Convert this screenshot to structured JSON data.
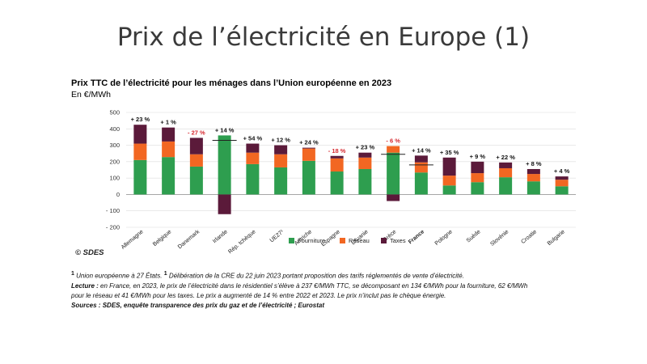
{
  "slide_title": "Prix de l’électricité en Europe (1)",
  "colors": {
    "fourniture": "#2e9e4f",
    "reseau": "#f26722",
    "taxes": "#5b1a3a",
    "negative_label": "#d6282f"
  },
  "chart_data": {
    "type": "bar",
    "stacked": true,
    "title": "Prix TTC de l’électricité pour les ménages dans l’Union européenne en 2023",
    "ylabel": "En €/MWh",
    "ylim": [
      -200,
      500
    ],
    "yticks": [
      "500",
      "400",
      "300",
      "200",
      "100",
      "0",
      "- 100",
      "- 200"
    ],
    "grid": true,
    "legend_position": "bottom",
    "categories": [
      "Allemagne",
      "Belgique",
      "Danemark",
      "Irlande",
      "Rép. tchèque",
      "UE27¹",
      "Autriche",
      "Espagne",
      "Lituanie",
      "Grèce",
      "France",
      "Pologne",
      "Suède",
      "Slovénie",
      "Croatie",
      "Bulgarie"
    ],
    "bold_categories": [
      "France"
    ],
    "changes": [
      "+ 23 %",
      "+ 1 %",
      "- 27 %",
      "+ 14 %",
      "+ 54 %",
      "+ 12 %",
      "+ 24 %",
      "- 18 %",
      "+ 23 %",
      "- 6 %",
      "+ 14 %",
      "+ 35 %",
      "+ 9 %",
      "+ 22 %",
      "+ 8 %",
      "+ 4 %"
    ],
    "change_negative": [
      false,
      false,
      true,
      false,
      false,
      false,
      false,
      true,
      false,
      true,
      false,
      false,
      false,
      false,
      false,
      false
    ],
    "series": [
      {
        "name": "Fourniture",
        "values": [
          210,
          228,
          170,
          360,
          185,
          165,
          205,
          140,
          155,
          255,
          134,
          55,
          75,
          105,
          80,
          50
        ]
      },
      {
        "name": "Réseau",
        "values": [
          100,
          95,
          75,
          0,
          70,
          80,
          75,
          80,
          70,
          40,
          62,
          60,
          55,
          55,
          45,
          40
        ]
      },
      {
        "name": "Taxes",
        "values": [
          115,
          85,
          100,
          -120,
          55,
          55,
          5,
          15,
          30,
          -40,
          41,
          110,
          70,
          35,
          30,
          20
        ]
      }
    ],
    "reference_lines": [
      {
        "category": "Irlande",
        "value": 330
      },
      {
        "category": "Grèce",
        "value": 245
      },
      {
        "category": "France",
        "value": 180
      }
    ]
  },
  "source_label": "© SDES",
  "notes": {
    "footnote_sup_1": "1",
    "footnote_1": "Union européenne à 27 États.",
    "footnote_sup_2": "1",
    "footnote_2": "Délibération de la CRE du 22 juin 2023 portant proposition des tarifs réglementés de vente d’électricité.",
    "lecture_label": "Lecture :",
    "lecture_text": "en France, en 2023, le prix de l’électricité dans le résidentiel s’élève à 237 €/MWh TTC, se décomposant en 134 €/MWh pour la fourniture, 62 €/MWh",
    "lecture_text_2": "pour le réseau et 41 €/MWh pour les taxes. Le prix a augmenté de 14 % entre 2022 et 2023. Le prix n’inclut pas le chèque énergie.",
    "sources_label": "Sources :",
    "sources_text": "SDES, enquête transparence des prix du gaz et de l’électricité ; Eurostat"
  }
}
